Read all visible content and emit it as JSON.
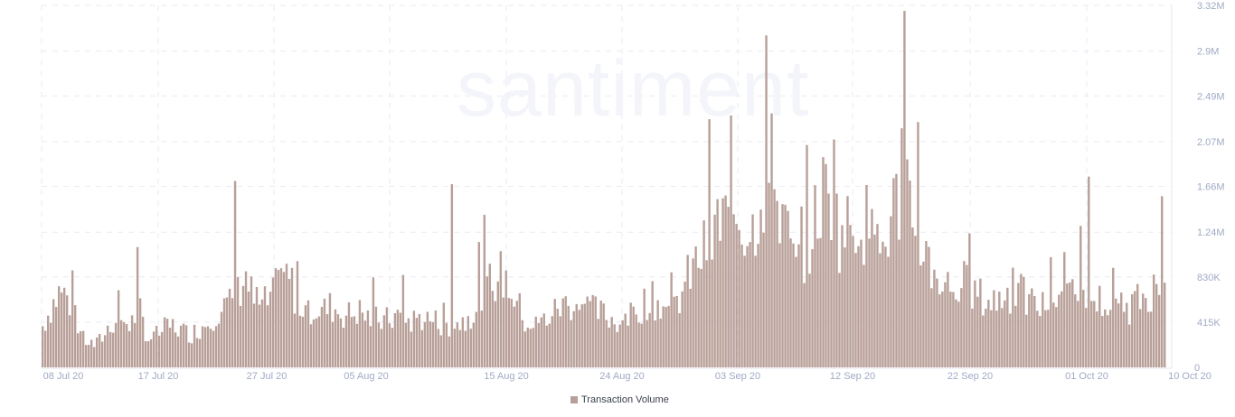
{
  "chart_data": {
    "type": "bar",
    "title": "",
    "watermark": "santiment",
    "xlabel": "",
    "ylabel": "",
    "ylim": [
      0,
      3320000
    ],
    "y_ticks": [
      "0",
      "415K",
      "830K",
      "1.24M",
      "1.66M",
      "2.07M",
      "2.49M",
      "2.9M",
      "3.32M"
    ],
    "y_tick_values": [
      0,
      415000,
      830000,
      1240000,
      1660000,
      2070000,
      2490000,
      2900000,
      3320000
    ],
    "x_ticks": [
      "08 Jul 20",
      "17 Jul 20",
      "27 Jul 20",
      "05 Aug 20",
      "15 Aug 20",
      "24 Aug 20",
      "03 Sep 20",
      "12 Sep 20",
      "22 Sep 20",
      "01 Oct 20",
      "10 Oct 20"
    ],
    "x_tick_positions": [
      70,
      175,
      295,
      405,
      560,
      688,
      816,
      943,
      1073,
      1202,
      1316
    ],
    "grid": true,
    "legend_position": "bottom-center",
    "series": [
      {
        "name": "Transaction Volume",
        "color": "#b89f98",
        "approx_daily_values_k": [
          380,
          560,
          700,
          620,
          330,
          240,
          200,
          300,
          420,
          450,
          380,
          560,
          260,
          300,
          360,
          380,
          330,
          310,
          360,
          440,
          520,
          560,
          600,
          880,
          620,
          560,
          620,
          760,
          840,
          620,
          560,
          540,
          520,
          560,
          500,
          480,
          520,
          460,
          440,
          420,
          460,
          480,
          420,
          460,
          440,
          420,
          380,
          400,
          420,
          520,
          640,
          760,
          860,
          780,
          620,
          420,
          380,
          420,
          480,
          560,
          580,
          600,
          560,
          520,
          480,
          440,
          420,
          460,
          540,
          620,
          600,
          560,
          520,
          700,
          880,
          1000,
          1140,
          1300,
          1380,
          1440,
          1300,
          1260,
          1640,
          1700,
          1500,
          1180,
          880,
          1040,
          1300,
          1600,
          1540,
          1200,
          1280,
          1380,
          1320,
          1100,
          1100,
          1460,
          1580,
          1480,
          1220,
          980,
          860,
          760,
          720,
          780,
          700,
          640,
          600,
          620,
          680,
          700,
          640,
          580,
          560,
          600,
          680,
          720,
          800,
          720,
          620,
          600,
          520,
          500,
          560,
          620,
          720,
          680,
          600
        ],
        "peaks_k": [
          {
            "date": "19 Jul 20",
            "value": 1710
          },
          {
            "date": "11 Aug 20",
            "value": 1680
          },
          {
            "date": "04 Sep 20",
            "value": 2330
          },
          {
            "date": "12 Sep 20",
            "value": 2090
          },
          {
            "date": "16 Sep 20",
            "value": 3270
          },
          {
            "date": "18 Sep 20",
            "value": 2250
          },
          {
            "date": "02 Oct 20",
            "value": 1750
          },
          {
            "date": "09 Oct 20",
            "value": 1570
          }
        ]
      }
    ]
  },
  "legend": {
    "items": [
      {
        "label": "Transaction Volume",
        "color": "#b89f98"
      }
    ]
  }
}
